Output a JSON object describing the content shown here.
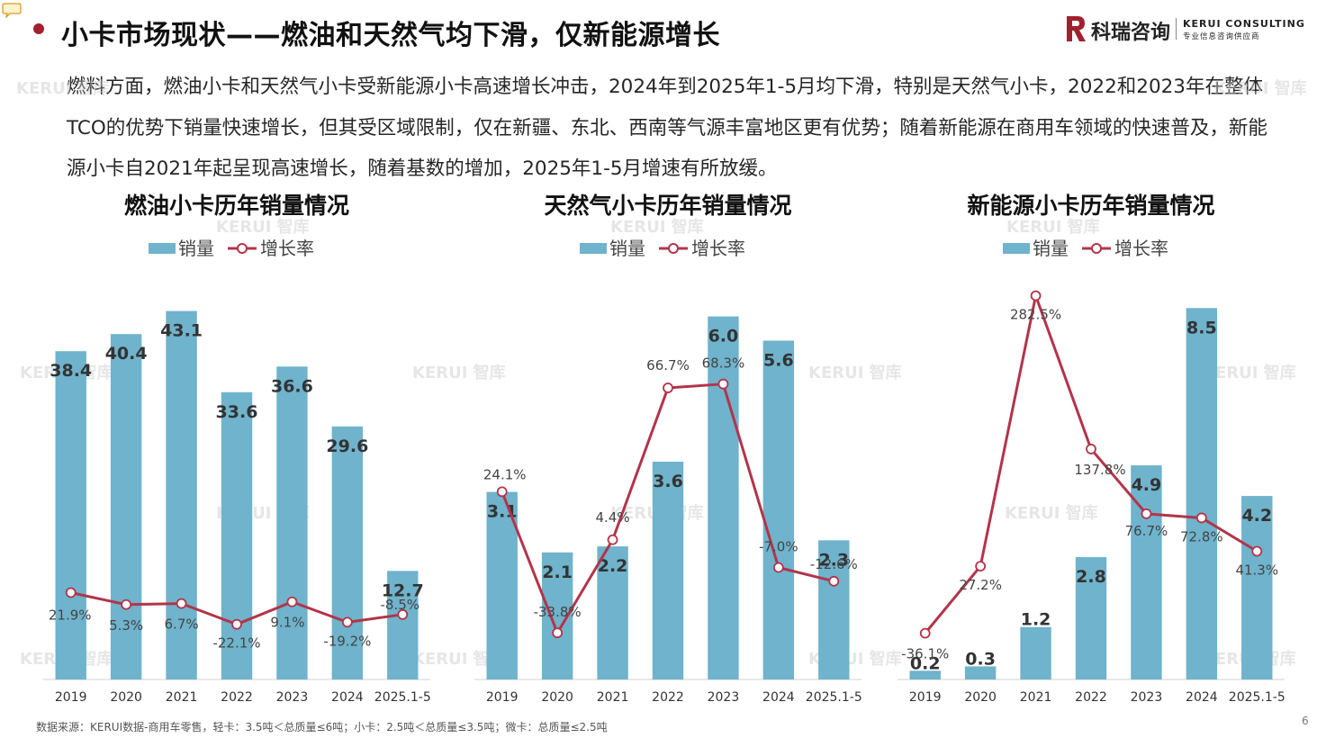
{
  "title": "小卡市场现状——燃油和天然气均下滑，仅新能源增长",
  "logo": {
    "name_cn": "科瑞咨询",
    "name_en": "KERUI CONSULTING",
    "tagline": "专业信息咨询供应商"
  },
  "intro_text": "燃料方面，燃油小卡和天然气小卡受新能源小卡高速增长冲击，2024年到2025年1-5月均下滑，特别是天然气小卡，2022和2023年在整体TCO的优势下销量快速增长，但其受区域限制，仅在新疆、东北、西南等气源丰富地区更有优势；随着新能源在商用车领域的快速普及，新能源小卡自2021年起呈现高速增长，随着基数的增加，2025年1-5月增速有所放缓。",
  "watermark_text": "KERUI 智库",
  "colors": {
    "bar": "#6fb3cc",
    "line": "#b3344a",
    "accent": "#a3202f"
  },
  "chart_data": [
    {
      "type": "bar",
      "title": "燃油小卡历年销量情况",
      "categories": [
        "2019",
        "2020",
        "2021",
        "2022",
        "2023",
        "2024",
        "2025.1-5"
      ],
      "series": [
        {
          "name": "销量",
          "type": "bar",
          "values": [
            38.4,
            40.4,
            43.1,
            33.6,
            36.6,
            29.6,
            12.7
          ],
          "labels": [
            "38.4",
            "40.4",
            "43.1",
            "33.6",
            "36.6",
            "29.6",
            "12.7"
          ]
        },
        {
          "name": "增长率",
          "type": "line",
          "values": [
            21.9,
            5.3,
            6.7,
            -22.1,
            9.1,
            -19.2,
            -8.5
          ],
          "labels": [
            "21.9%",
            "5.3%",
            "6.7%",
            "-22.1%",
            "9.1%",
            "-19.2%",
            "-8.5%"
          ]
        }
      ]
    },
    {
      "type": "bar",
      "title": "天然气小卡历年销量情况",
      "categories": [
        "2019",
        "2020",
        "2021",
        "2022",
        "2023",
        "2024",
        "2025.1-5"
      ],
      "series": [
        {
          "name": "销量",
          "type": "bar",
          "values": [
            3.1,
            2.1,
            2.2,
            3.6,
            6.0,
            5.6,
            2.3
          ],
          "labels": [
            "3.1",
            "2.1",
            "2.2",
            "3.6",
            "6.0",
            "5.6",
            "2.3"
          ]
        },
        {
          "name": "增长率",
          "type": "line",
          "values": [
            24.1,
            -33.8,
            4.4,
            66.7,
            68.3,
            -7.0,
            -12.6
          ],
          "labels": [
            "24.1%",
            "-33.8%",
            "4.4%",
            "66.7%",
            "68.3%",
            "-7.0%",
            "-12.6%"
          ]
        }
      ]
    },
    {
      "type": "bar",
      "title": "新能源小卡历年销量情况",
      "categories": [
        "2019",
        "2020",
        "2021",
        "2022",
        "2023",
        "2024",
        "2025.1-5"
      ],
      "series": [
        {
          "name": "销量",
          "type": "bar",
          "values": [
            0.2,
            0.3,
            1.2,
            2.8,
            4.9,
            8.5,
            4.2
          ],
          "labels": [
            "0.2",
            "0.3",
            "1.2",
            "2.8",
            "4.9",
            "8.5",
            "4.2"
          ]
        },
        {
          "name": "增长率",
          "type": "line",
          "values": [
            -36.1,
            27.2,
            282.5,
            137.8,
            76.7,
            72.8,
            41.3
          ],
          "labels": [
            "-36.1%",
            "27.2%",
            "282.5%",
            "137.8%",
            "76.7%",
            "72.8%",
            "41.3%"
          ]
        }
      ]
    }
  ],
  "footer_note": "数据来源：KERUI数据-商用车零售，轻卡：3.5吨＜总质量≤6吨；小卡：2.5吨＜总质量≤3.5吨；微卡：总质量≤2.5吨",
  "page_number": "6"
}
